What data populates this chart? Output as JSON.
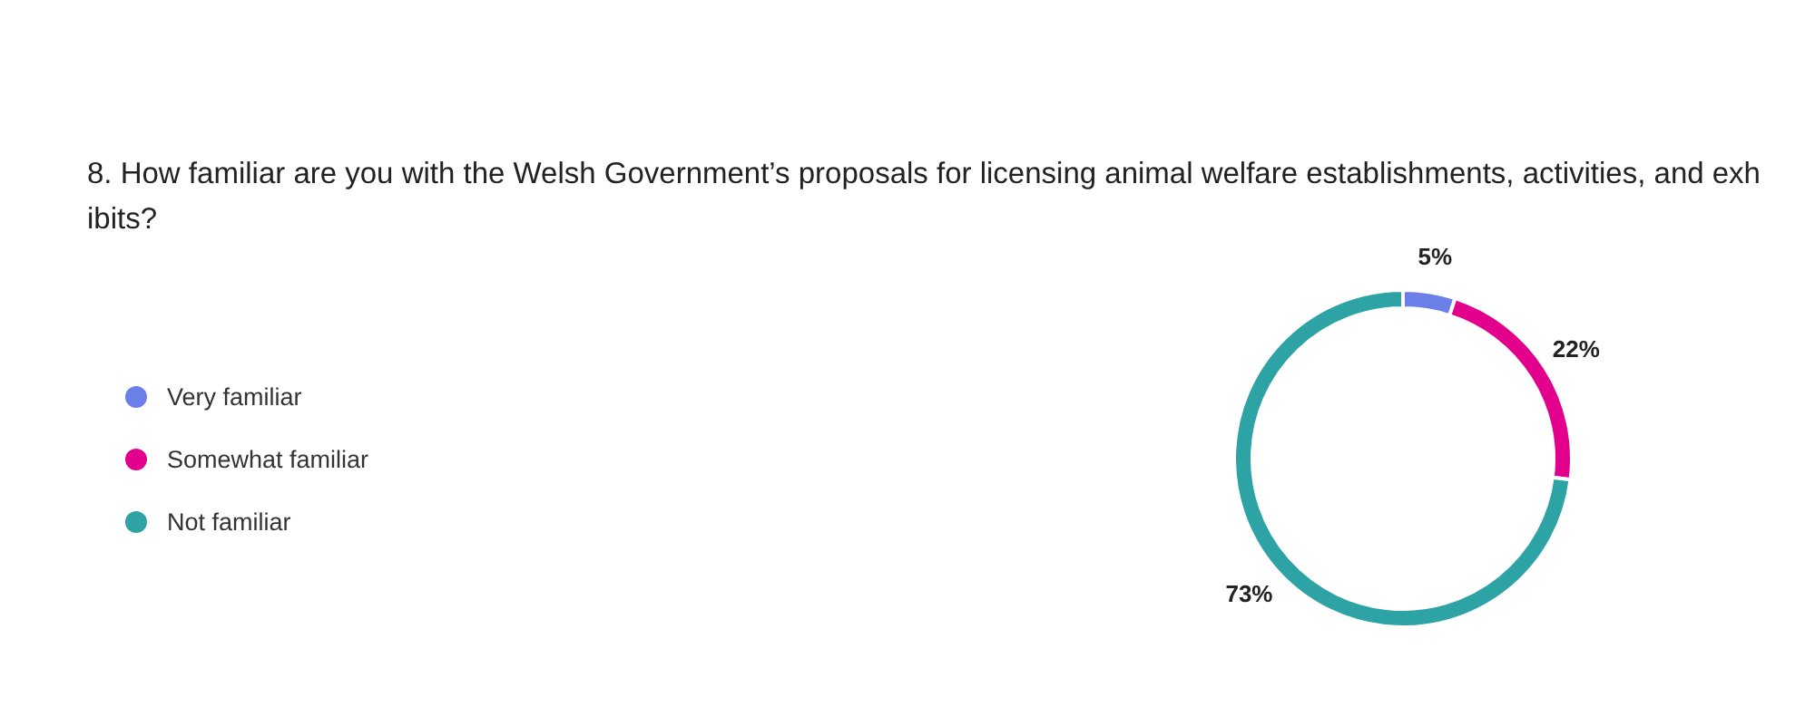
{
  "chart_data": {
    "type": "donut",
    "title": "8. How familiar are you with the Welsh Government’s proposals for licensing animal welfare establishments, activities, and exhibits?",
    "categories": [
      "Very familiar",
      "Somewhat familiar",
      "Not familiar"
    ],
    "values": [
      5,
      22,
      73
    ],
    "colors": [
      "#6b7fe8",
      "#e3008c",
      "#2ea3a6"
    ],
    "value_labels": [
      "5%",
      "22%",
      "73%"
    ],
    "legend": "left"
  }
}
